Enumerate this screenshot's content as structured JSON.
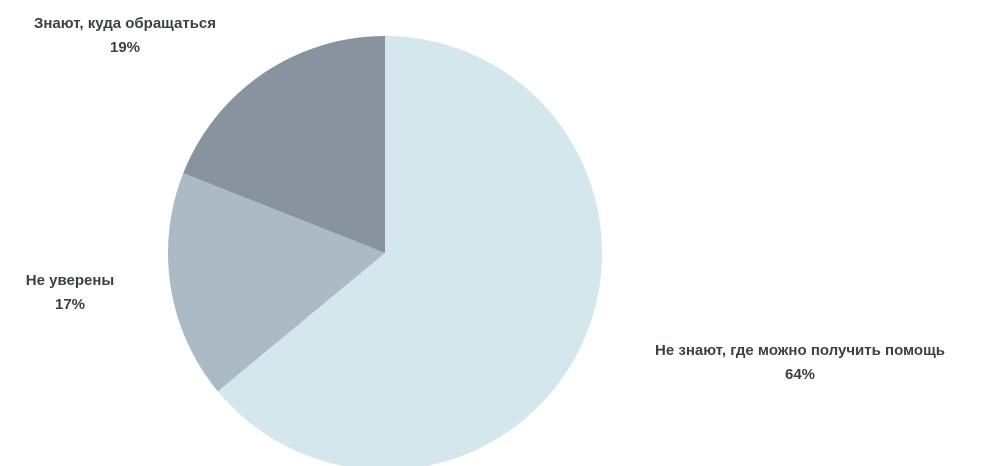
{
  "chart_data": {
    "type": "pie",
    "slices": [
      {
        "label": "Не знают, где можно получить помощь",
        "value": 64,
        "value_label": "64%",
        "color": "#d3e7ec"
      },
      {
        "label": "Не уверены",
        "value": 17,
        "value_label": "17%",
        "color": "#abbac4"
      },
      {
        "label": "Знают, куда обращаться",
        "value": 19,
        "value_label": "19%",
        "color": "#89939f"
      }
    ],
    "start": "12 o'clock",
    "direction": "clockwise",
    "legend": "none"
  }
}
